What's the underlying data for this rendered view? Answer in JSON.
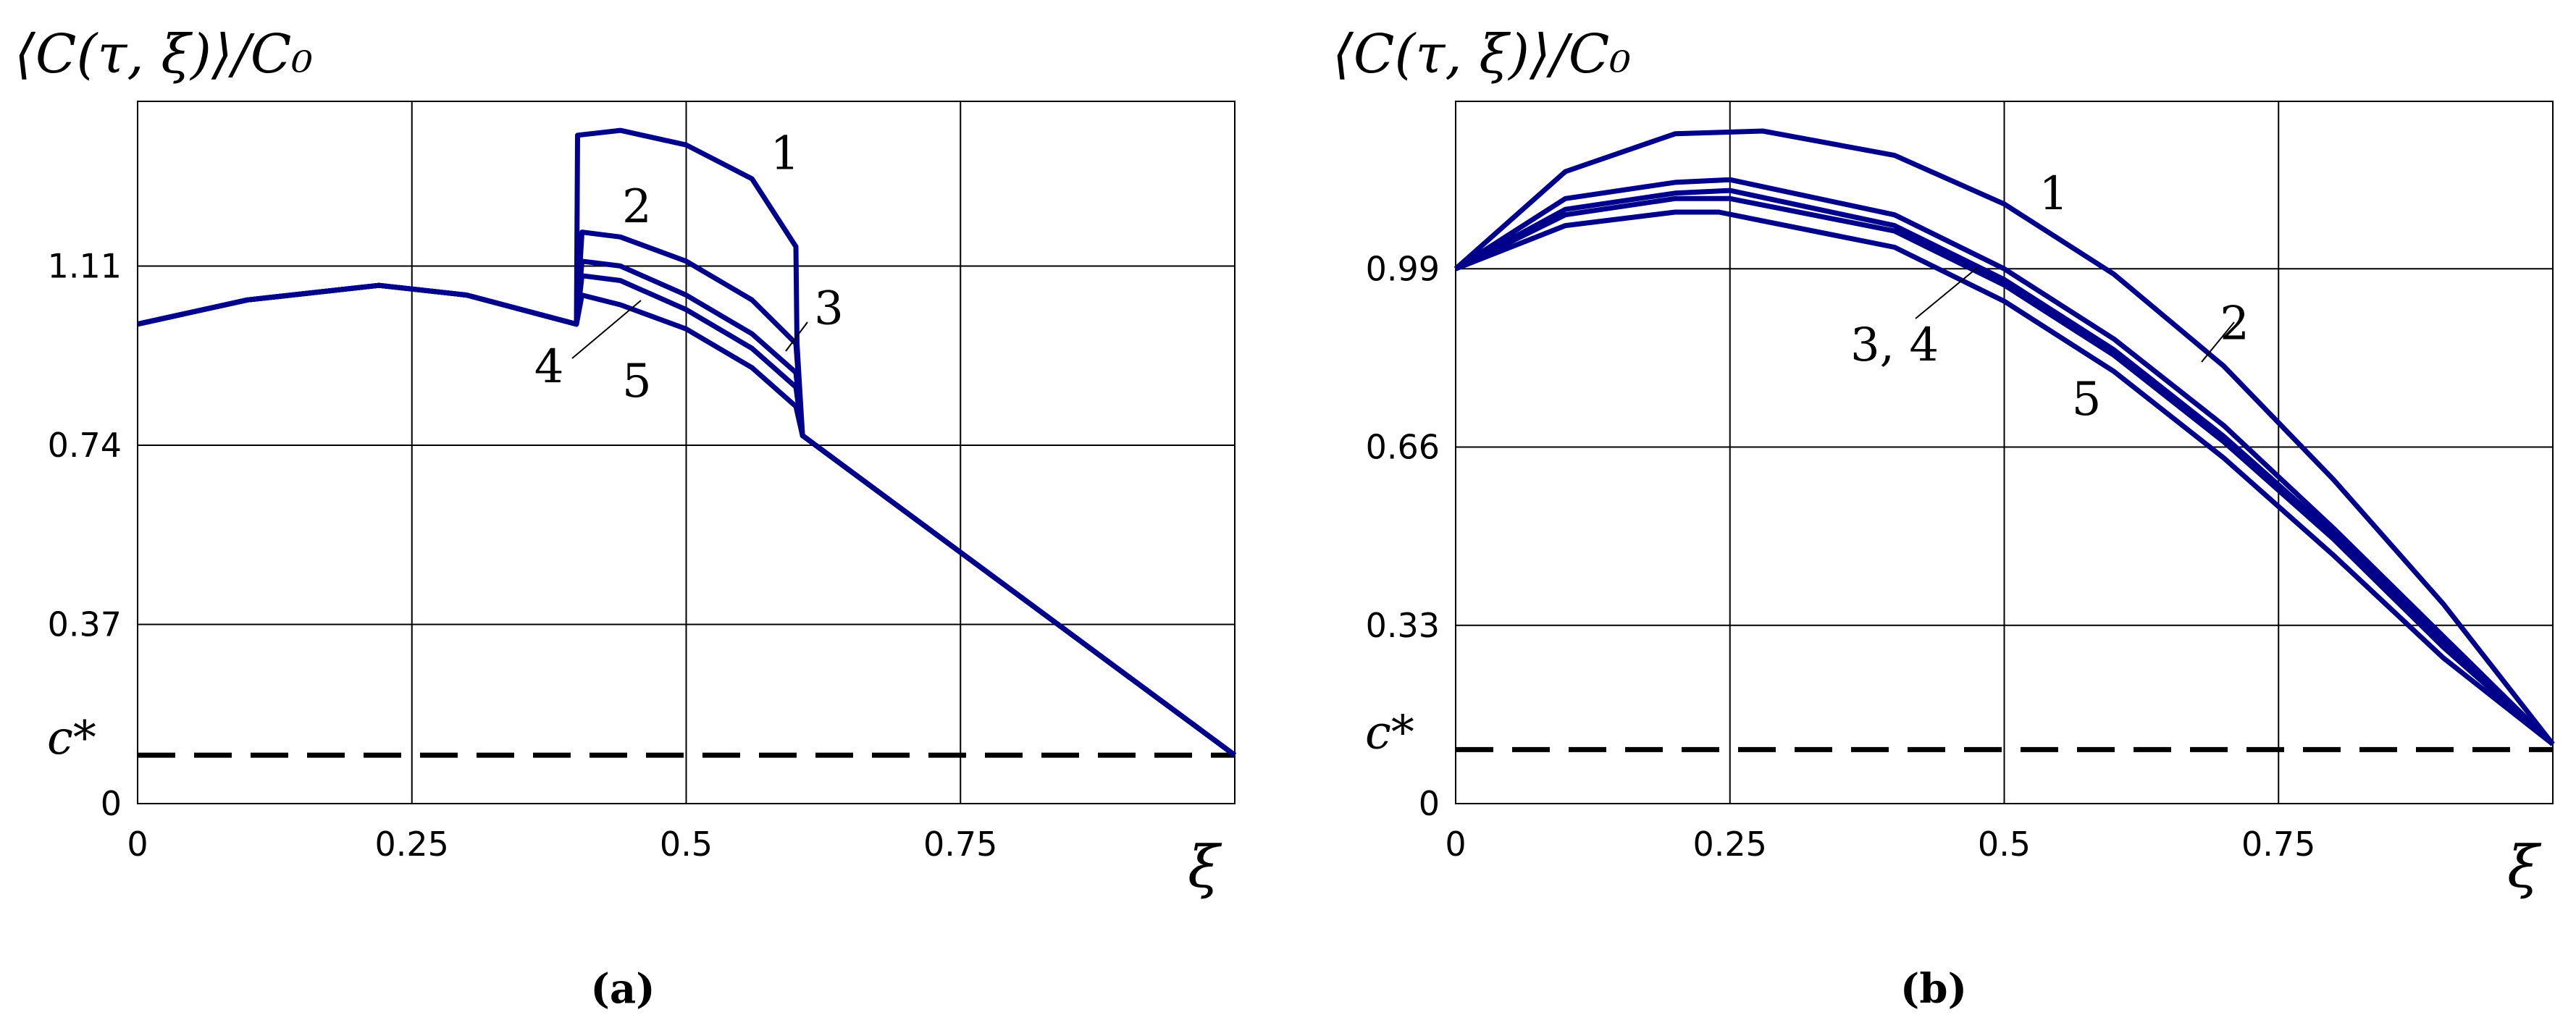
{
  "chart_data": [
    {
      "type": "line",
      "panel_label": "(a)",
      "ylabel": "⟨C(τ, ξ)⟩/C₀",
      "xlabel": "ξ",
      "xlim": [
        0,
        1
      ],
      "ylim": [
        0,
        1.45
      ],
      "x_ticks": [
        "0",
        "0.25",
        "0.5",
        "0.75"
      ],
      "x_tick_values": [
        0,
        0.25,
        0.5,
        0.75
      ],
      "y_ticks": [
        "0",
        "0.37",
        "0.74",
        "1.11"
      ],
      "y_tick_values": [
        0,
        0.37,
        0.74,
        1.11
      ],
      "grid": true,
      "threshold": {
        "label": "c*",
        "value": 0.1
      },
      "color": "#00008b",
      "series": [
        {
          "name": "1",
          "x": [
            0,
            0.1,
            0.22,
            0.3,
            0.4,
            0.401,
            0.44,
            0.5,
            0.56,
            0.6,
            0.601,
            0.606,
            1
          ],
          "y": [
            0.99,
            1.04,
            1.07,
            1.05,
            0.99,
            1.38,
            1.39,
            1.36,
            1.29,
            1.15,
            0.95,
            0.76,
            0.1
          ]
        },
        {
          "name": "2",
          "x": [
            0,
            0.1,
            0.22,
            0.3,
            0.4,
            0.405,
            0.44,
            0.5,
            0.56,
            0.6,
            0.606,
            1
          ],
          "y": [
            0.99,
            1.04,
            1.07,
            1.05,
            0.99,
            1.18,
            1.17,
            1.12,
            1.04,
            0.95,
            0.76,
            0.1
          ]
        },
        {
          "name": "3",
          "x": [
            0,
            0.1,
            0.22,
            0.3,
            0.4,
            0.405,
            0.44,
            0.5,
            0.56,
            0.6,
            0.606,
            1
          ],
          "y": [
            0.99,
            1.04,
            1.07,
            1.05,
            0.99,
            1.12,
            1.11,
            1.05,
            0.97,
            0.89,
            0.76,
            0.1
          ]
        },
        {
          "name": "4",
          "x": [
            0,
            0.1,
            0.22,
            0.3,
            0.4,
            0.405,
            0.44,
            0.5,
            0.56,
            0.6,
            0.606,
            1
          ],
          "y": [
            0.99,
            1.04,
            1.07,
            1.05,
            0.99,
            1.09,
            1.08,
            1.02,
            0.94,
            0.86,
            0.76,
            0.1
          ]
        },
        {
          "name": "5",
          "x": [
            0,
            0.1,
            0.22,
            0.3,
            0.4,
            0.405,
            0.44,
            0.5,
            0.56,
            0.6,
            0.606,
            1
          ],
          "y": [
            0.99,
            1.04,
            1.07,
            1.05,
            0.99,
            1.05,
            1.03,
            0.98,
            0.9,
            0.82,
            0.76,
            0.1
          ]
        }
      ],
      "annotations": [
        {
          "text": "1",
          "x": 0.59,
          "y": 1.31
        },
        {
          "text": "2",
          "x": 0.455,
          "y": 1.2
        },
        {
          "text": "3",
          "x": 0.63,
          "y": 0.99
        },
        {
          "text": "4",
          "x": 0.375,
          "y": 0.87
        },
        {
          "text": "5",
          "x": 0.455,
          "y": 0.84
        }
      ]
    },
    {
      "type": "line",
      "panel_label": "(b)",
      "ylabel": "⟨C(τ, ξ)⟩/C₀",
      "xlabel": "ξ",
      "xlim": [
        0,
        1
      ],
      "ylim": [
        0,
        1.3
      ],
      "x_ticks": [
        "0",
        "0.25",
        "0.5",
        "0.75"
      ],
      "x_tick_values": [
        0,
        0.25,
        0.5,
        0.75
      ],
      "y_ticks": [
        "0",
        "0.33",
        "0.66",
        "0.99"
      ],
      "y_tick_values": [
        0,
        0.33,
        0.66,
        0.99
      ],
      "grid": true,
      "threshold": {
        "label": "c*",
        "value": 0.1
      },
      "color": "#00008b",
      "series": [
        {
          "name": "1",
          "x": [
            0,
            0.1,
            0.2,
            0.28,
            0.4,
            0.5,
            0.6,
            0.7,
            0.8,
            0.9,
            1
          ],
          "y": [
            0.99,
            1.17,
            1.24,
            1.245,
            1.2,
            1.11,
            0.98,
            0.81,
            0.6,
            0.37,
            0.11
          ]
        },
        {
          "name": "2",
          "x": [
            0,
            0.1,
            0.2,
            0.25,
            0.4,
            0.5,
            0.6,
            0.7,
            0.8,
            0.9,
            1
          ],
          "y": [
            0.99,
            1.12,
            1.15,
            1.155,
            1.09,
            0.99,
            0.86,
            0.7,
            0.51,
            0.31,
            0.11
          ]
        },
        {
          "name": "3",
          "x": [
            0,
            0.1,
            0.2,
            0.25,
            0.4,
            0.5,
            0.6,
            0.7,
            0.8,
            0.9,
            1
          ],
          "y": [
            0.99,
            1.1,
            1.13,
            1.135,
            1.07,
            0.97,
            0.84,
            0.68,
            0.5,
            0.3,
            0.11
          ]
        },
        {
          "name": "4",
          "x": [
            0,
            0.1,
            0.2,
            0.25,
            0.4,
            0.5,
            0.6,
            0.7,
            0.8,
            0.9,
            1
          ],
          "y": [
            0.99,
            1.09,
            1.12,
            1.12,
            1.06,
            0.96,
            0.83,
            0.67,
            0.49,
            0.29,
            0.11
          ]
        },
        {
          "name": "5",
          "x": [
            0,
            0.1,
            0.2,
            0.24,
            0.4,
            0.5,
            0.6,
            0.7,
            0.8,
            0.9,
            1
          ],
          "y": [
            0.99,
            1.07,
            1.095,
            1.095,
            1.03,
            0.93,
            0.8,
            0.64,
            0.46,
            0.27,
            0.11
          ]
        }
      ],
      "annotations": [
        {
          "text": "1",
          "x": 0.545,
          "y": 1.1
        },
        {
          "text": "2",
          "x": 0.71,
          "y": 0.86
        },
        {
          "text": "3, 4",
          "x": 0.4,
          "y": 0.82
        },
        {
          "text": "5",
          "x": 0.575,
          "y": 0.72
        }
      ]
    }
  ]
}
